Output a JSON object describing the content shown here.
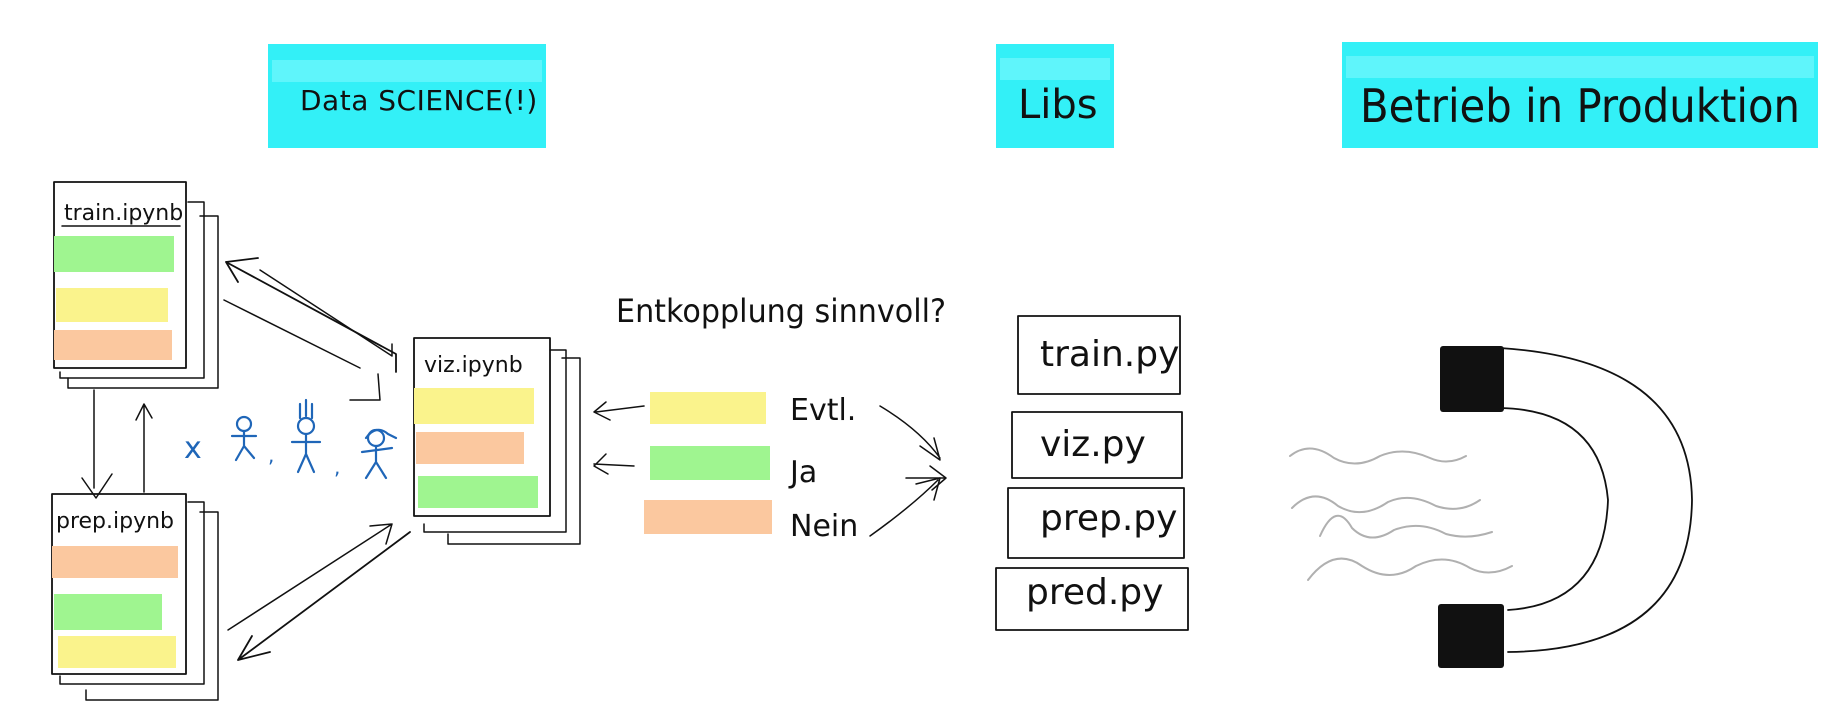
{
  "colors": {
    "header_bg": "#33f0f7",
    "header_bg_light": "#5ff5fb",
    "cell_green": "#9ff590",
    "cell_yellow": "#faf38c",
    "cell_orange": "#fbc89f",
    "ink": "#111111",
    "people_blue": "#1f66b8",
    "magnet_wave": "#b0b0b0"
  },
  "headers": {
    "data_science": "Data SCIENCE(!)",
    "libs": "Libs",
    "betrieb": "Betrieb in Produktion"
  },
  "notebooks": {
    "train": {
      "title": "train.ipynb",
      "cells": [
        "green",
        "yellow",
        "orange"
      ]
    },
    "prep": {
      "title": "prep.ipynb",
      "cells": [
        "orange",
        "green",
        "yellow"
      ]
    },
    "viz": {
      "title": "viz.ipynb",
      "cells": [
        "yellow",
        "orange",
        "green"
      ]
    }
  },
  "people": {
    "multiplier": "x",
    "separators": [
      ",",
      ","
    ]
  },
  "decoupling": {
    "question": "Entkopplung sinnvoll?",
    "options": [
      {
        "color": "yellow",
        "label": "Evtl."
      },
      {
        "color": "green",
        "label": "Ja"
      },
      {
        "color": "orange",
        "label": "Nein"
      }
    ]
  },
  "libs": {
    "files": [
      "train.py",
      "viz.py",
      "prep.py",
      "pred.py"
    ]
  },
  "production": {
    "icon": "magnet-icon"
  }
}
